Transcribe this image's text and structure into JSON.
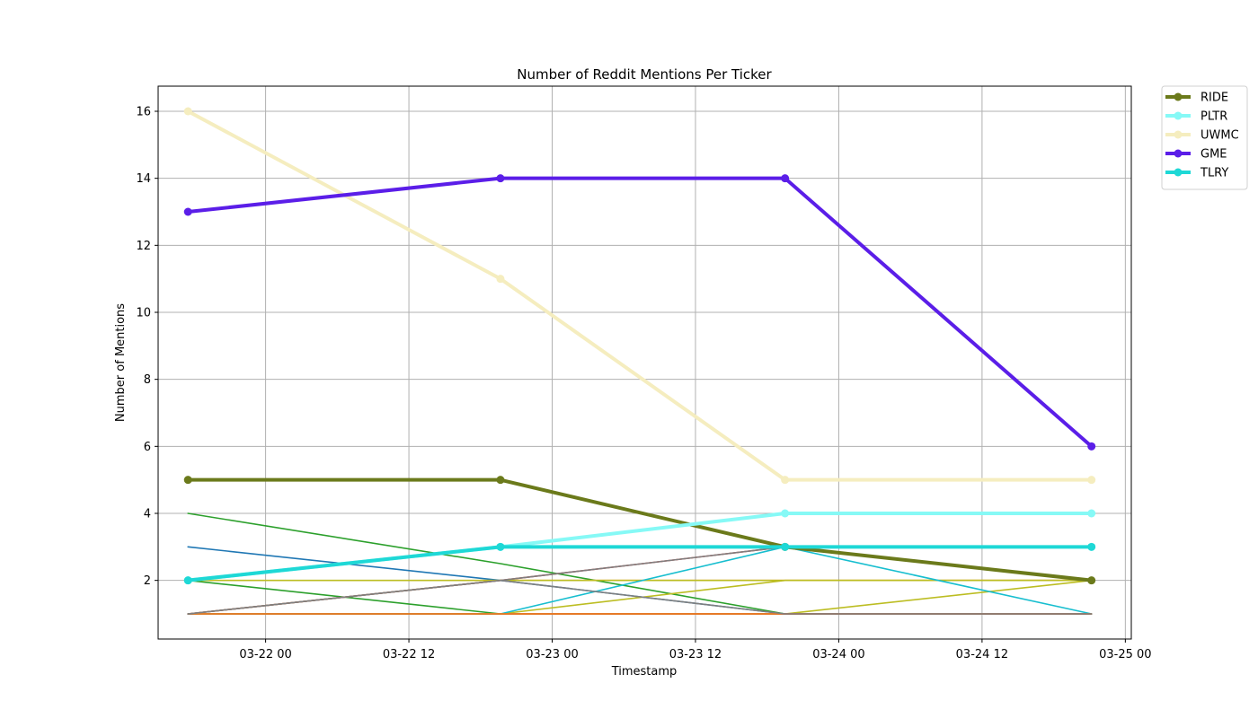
{
  "chart_data": {
    "type": "line",
    "title": "Number of Reddit Mentions Per Ticker",
    "xlabel": "Timestamp",
    "ylabel": "Number of Mentions",
    "x_ticks": [
      "03-22 00",
      "03-22 12",
      "03-23 00",
      "03-23 12",
      "03-24 00",
      "03-24 12",
      "03-25 00"
    ],
    "y_ticks": [
      2,
      4,
      6,
      8,
      10,
      12,
      14,
      16
    ],
    "xlim": [
      "03-21 15:00",
      "03-25 00:30"
    ],
    "ylim": [
      0.25,
      16.75
    ],
    "grid": true,
    "legend_position": "outside upper-right",
    "x": [
      "03-21 17:30",
      "03-22 19:40",
      "03-23 19:30",
      "03-24 21:10"
    ],
    "series": [
      {
        "name": "RIDE",
        "values": [
          5,
          5,
          3,
          2
        ],
        "color": "#6b7a1b",
        "highlight": true
      },
      {
        "name": "PLTR",
        "values": [
          2,
          3,
          4,
          4
        ],
        "color": "#86f9f6",
        "highlight": true
      },
      {
        "name": "UWMC",
        "values": [
          16,
          11,
          5,
          5
        ],
        "color": "#f5edbf",
        "highlight": true
      },
      {
        "name": "GME",
        "values": [
          13,
          14,
          14,
          6
        ],
        "color": "#5b1ee8",
        "highlight": true
      },
      {
        "name": "TLRY",
        "values": [
          2,
          3,
          3,
          3
        ],
        "color": "#1ed8d6",
        "highlight": true
      },
      {
        "values": [
          3,
          2,
          1,
          1
        ],
        "color": "#1f77b4"
      },
      {
        "values": [
          4,
          2.5,
          1,
          1
        ],
        "color": "#2ca02c"
      },
      {
        "values": [
          2,
          1,
          1,
          1
        ],
        "color": "#2ca02c"
      },
      {
        "values": [
          1,
          2,
          3,
          3
        ],
        "color": "#d62728"
      },
      {
        "values": [
          1,
          2,
          2,
          2
        ],
        "color": "#ff7f0e"
      },
      {
        "values": [
          2,
          2,
          2,
          2
        ],
        "color": "#bcbd22"
      },
      {
        "values": [
          1,
          1,
          2,
          2
        ],
        "color": "#bcbd22"
      },
      {
        "values": [
          1,
          1,
          1,
          2
        ],
        "color": "#bcbd22"
      },
      {
        "values": [
          1,
          1,
          1,
          1
        ],
        "color": "#e377c2"
      },
      {
        "values": [
          1,
          1,
          1,
          1
        ],
        "color": "#9467bd"
      },
      {
        "values": [
          1,
          1,
          3,
          1
        ],
        "color": "#17becf"
      },
      {
        "values": [
          1,
          1,
          1,
          1
        ],
        "color": "#8c564b"
      },
      {
        "values": [
          1,
          1,
          1,
          1
        ],
        "color": "#ff7f0e"
      },
      {
        "values": [
          1,
          2,
          1,
          1
        ],
        "color": "#7f7f7f"
      },
      {
        "values": [
          1,
          2,
          3,
          3
        ],
        "color": "#7f7f7f"
      }
    ]
  }
}
